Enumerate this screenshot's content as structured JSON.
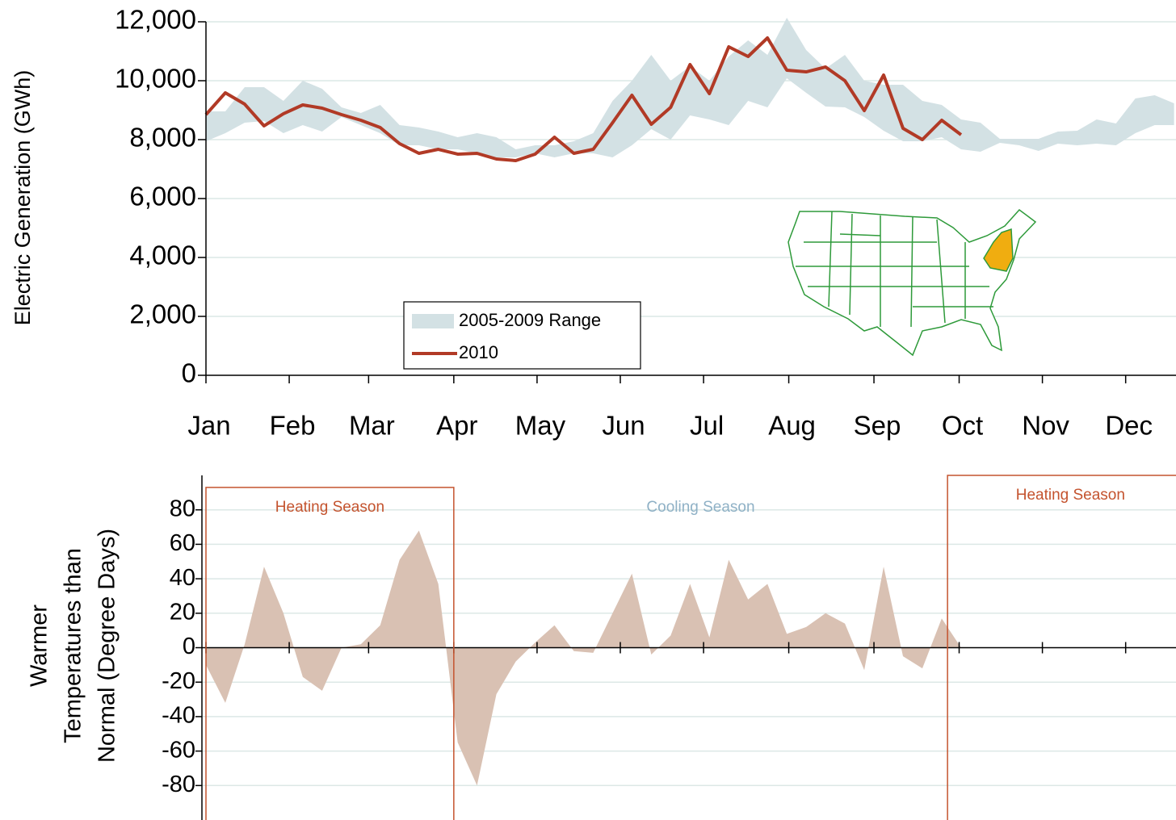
{
  "chart_data": [
    {
      "type": "line",
      "ylabel": "Electric Generation (GWh)",
      "x": [
        1,
        2,
        3,
        4,
        5,
        6,
        7,
        8,
        9,
        10,
        11,
        12,
        13,
        14,
        15,
        16,
        17,
        18,
        19,
        20,
        21,
        22,
        23,
        24,
        25,
        26,
        27,
        28,
        29,
        30,
        31,
        32,
        33,
        34,
        35,
        36,
        37,
        38,
        39,
        40,
        41,
        42,
        43,
        44,
        45,
        46,
        47,
        48,
        49,
        50,
        51
      ],
      "xlim": [
        1,
        51.1
      ],
      "xticks": [
        {
          "value": 1,
          "label": "Jan"
        },
        {
          "value": 5.3,
          "label": "Feb"
        },
        {
          "value": 9.4,
          "label": "Mar"
        },
        {
          "value": 13.8,
          "label": "Apr"
        },
        {
          "value": 18.1,
          "label": "May"
        },
        {
          "value": 22.4,
          "label": "Jun"
        },
        {
          "value": 26.7,
          "label": "Jul"
        },
        {
          "value": 31.1,
          "label": "Aug"
        },
        {
          "value": 35.5,
          "label": "Sep"
        },
        {
          "value": 39.9,
          "label": "Oct"
        },
        {
          "value": 44.2,
          "label": "Nov"
        },
        {
          "value": 48.5,
          "label": "Dec"
        }
      ],
      "ylim": [
        0,
        12000
      ],
      "yticks": [
        0,
        {
          "value": 2000,
          "label": "2,000"
        },
        {
          "value": 4000,
          "label": "4,000"
        },
        {
          "value": 6000,
          "label": "6,000"
        },
        {
          "value": 8000,
          "label": "8,000"
        },
        {
          "value": 10000,
          "label": "10,000"
        },
        {
          "value": 12000,
          "label": "12,000"
        }
      ],
      "grid": true,
      "legend": "lower-left",
      "series": [
        {
          "name": "2005-2009 Range",
          "type": "band",
          "color": "#d3e1e4",
          "low": [
            7945,
            8219,
            8575,
            8630,
            8219,
            8493,
            8274,
            8767,
            8493,
            8219,
            7808,
            7808,
            7671,
            7671,
            7534,
            7397,
            7397,
            7534,
            7397,
            7534,
            7534,
            7397,
            7808,
            8356,
            8000,
            8822,
            8685,
            8493,
            9315,
            9096,
            10082,
            9589,
            9123,
            9096,
            8767,
            8301,
            7945,
            7945,
            8082,
            7671,
            7589,
            7890,
            7808,
            7616,
            7863,
            7808,
            7863,
            7808,
            8219,
            8493,
            8493
          ],
          "high": [
            8959,
            8959,
            9781,
            9781,
            9315,
            10000,
            9726,
            9096,
            8904,
            9178,
            8493,
            8411,
            8274,
            8082,
            8219,
            8082,
            7671,
            7808,
            7808,
            7945,
            8219,
            9315,
            10000,
            10877,
            10000,
            10493,
            10000,
            10822,
            11370,
            10877,
            12137,
            11041,
            10411,
            10877,
            10000,
            9863,
            9863,
            9315,
            9178,
            8685,
            8575,
            8027,
            8027,
            8027,
            8274,
            8301,
            8685,
            8548,
            9397,
            9507,
            9233
          ]
        },
        {
          "name": "2010",
          "type": "line",
          "color": "#b13a26",
          "values": [
            8849,
            9589,
            9205,
            8466,
            8877,
            9178,
            9068,
            8849,
            8658,
            8411,
            7863,
            7534,
            7671,
            7507,
            7534,
            7342,
            7288,
            7507,
            8082,
            7534,
            7671,
            8575,
            9507,
            8521,
            9096,
            10548,
            9562,
            11151,
            10822,
            11452,
            10356,
            10301,
            10466,
            10000,
            8986,
            10192,
            8384,
            8000,
            8658,
            8164,
            null,
            null,
            null,
            null,
            null,
            null,
            null,
            null,
            null,
            null,
            null
          ]
        }
      ]
    },
    {
      "type": "area",
      "ylabel": [
        "Warmer",
        "Temperatures than",
        "Normal (Degree Days)"
      ],
      "x": [
        1,
        2,
        3,
        4,
        5,
        6,
        7,
        8,
        9,
        10,
        11,
        12,
        13,
        14,
        15,
        16,
        17,
        18,
        19,
        20,
        21,
        22,
        23,
        24,
        25,
        26,
        27,
        28,
        29,
        30,
        31,
        32,
        33,
        34,
        35,
        36,
        37,
        38,
        39,
        40,
        41,
        42,
        43,
        44,
        45,
        46,
        47,
        48,
        49,
        50,
        51
      ],
      "xlim": [
        1,
        51.1
      ],
      "ylim": [
        -100,
        100
      ],
      "yticks": [
        -80,
        -60,
        -40,
        -20,
        0,
        20,
        40,
        60,
        80
      ],
      "grid": true,
      "color": "#d9c1b3",
      "values": [
        -10,
        -32,
        2,
        47,
        20,
        -17,
        -25,
        0,
        2,
        13,
        51,
        68,
        37,
        -55,
        -80,
        -27,
        -8,
        3,
        13,
        -2,
        -3,
        20,
        43,
        -4,
        7,
        37,
        6,
        51,
        28,
        37,
        8,
        12,
        20,
        14,
        -13,
        47,
        -5,
        -12,
        17,
        0,
        null,
        null,
        null,
        null,
        null,
        null,
        null,
        null,
        null,
        null,
        null
      ],
      "seasons": [
        {
          "label": "Heating Season",
          "start": 1,
          "end": 13.8,
          "top": 93,
          "boxed": true,
          "color": "#c4532e"
        },
        {
          "label": "Cooling Season",
          "start": 13.8,
          "end": 39.3,
          "top": 93,
          "boxed": false,
          "color": "#8fb1c6"
        },
        {
          "label": "Heating Season",
          "start": 39.3,
          "end": 52,
          "top": 100,
          "boxed": true,
          "color": "#c4532e"
        }
      ]
    }
  ]
}
